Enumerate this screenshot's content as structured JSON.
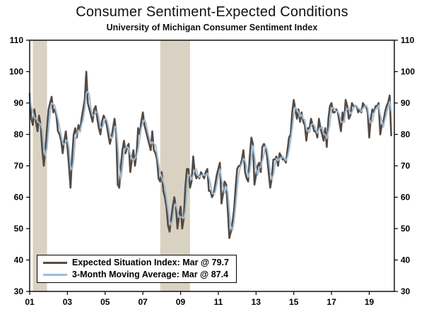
{
  "chart_data": {
    "type": "line",
    "title": "Consumer Sentiment-Expected Conditions",
    "subtitle": "University of Michigan Consumer Sentiment Index",
    "frequency": "monthly",
    "x_start_year": 2001,
    "x_start_month": 1,
    "xlim": [
      2001.0,
      2020.33
    ],
    "ylim": [
      30,
      110
    ],
    "y_tick_step": 10,
    "x_tick_labels": [
      "01",
      "03",
      "05",
      "07",
      "09",
      "11",
      "13",
      "15",
      "17",
      "19"
    ],
    "x_tick_years": [
      2001,
      2003,
      2005,
      2007,
      2009,
      2011,
      2013,
      2015,
      2017,
      2019
    ],
    "grid": "off",
    "legend_position": "bottom-left",
    "band_color": "#d9d2c2",
    "recession_bands": [
      {
        "start": 2001.17,
        "end": 2001.92
      },
      {
        "start": 2007.92,
        "end": 2009.5
      }
    ],
    "series": [
      {
        "name": "Expected Situation Index: Mar @ 79.7",
        "color": "#554a42",
        "line_width": 2.6,
        "values": [
          93,
          85,
          83,
          88,
          84,
          81,
          86,
          83,
          75,
          70,
          75,
          82,
          88,
          90,
          92,
          87,
          88,
          86,
          81,
          80,
          78,
          74,
          78,
          81,
          76,
          70,
          63,
          73,
          80,
          82,
          79,
          83,
          81,
          85,
          88,
          91,
          100,
          90,
          88,
          86,
          84,
          88,
          89,
          85,
          82,
          80,
          84,
          86,
          85,
          83,
          80,
          77,
          79,
          82,
          85,
          81,
          64,
          63,
          70,
          75,
          78,
          74,
          76,
          77,
          68,
          72,
          75,
          70,
          74,
          82,
          80,
          84,
          87,
          83,
          81,
          79,
          77,
          75,
          81,
          75,
          74,
          72,
          66,
          65,
          68,
          62,
          60,
          57,
          51,
          49,
          53,
          57,
          60,
          57,
          50,
          54,
          57,
          50,
          53,
          63,
          69,
          69,
          63,
          65,
          73,
          68,
          66,
          67,
          66,
          68,
          67,
          66,
          68,
          69,
          62,
          62,
          60,
          61,
          64,
          67,
          69,
          71,
          58,
          61,
          65,
          64,
          56,
          47,
          49,
          52,
          56,
          63,
          69,
          70,
          70,
          72,
          75,
          68,
          66,
          65,
          73,
          79,
          77,
          64,
          67,
          70,
          71,
          68,
          76,
          77,
          76,
          73,
          68,
          63,
          66,
          72,
          72,
          73,
          70,
          74,
          73,
          72,
          72,
          71,
          75,
          79,
          80,
          87,
          91,
          88,
          85,
          88,
          84,
          87,
          84,
          83,
          78,
          82,
          82,
          85,
          83,
          81,
          81,
          79,
          85,
          82,
          80,
          78,
          82,
          76,
          85,
          89,
          90,
          87,
          87,
          88,
          87,
          84,
          81,
          87,
          84,
          91,
          89,
          85,
          86,
          90,
          89,
          89,
          89,
          87,
          88,
          87,
          90,
          89,
          89,
          87,
          79,
          85,
          88,
          87,
          89,
          89,
          90,
          80,
          83,
          84,
          87,
          89,
          90.1,
          92.4,
          79.7
        ],
        "last_point": {
          "label": "Mar",
          "value": 79.7
        }
      },
      {
        "name": "3-Month Moving Average: Mar @ 87.4",
        "color": "#9dbdd8",
        "line_width": 2,
        "derived": "3-month trailing moving average of series 0",
        "last_point": {
          "label": "Mar",
          "value": 87.4
        }
      }
    ]
  }
}
